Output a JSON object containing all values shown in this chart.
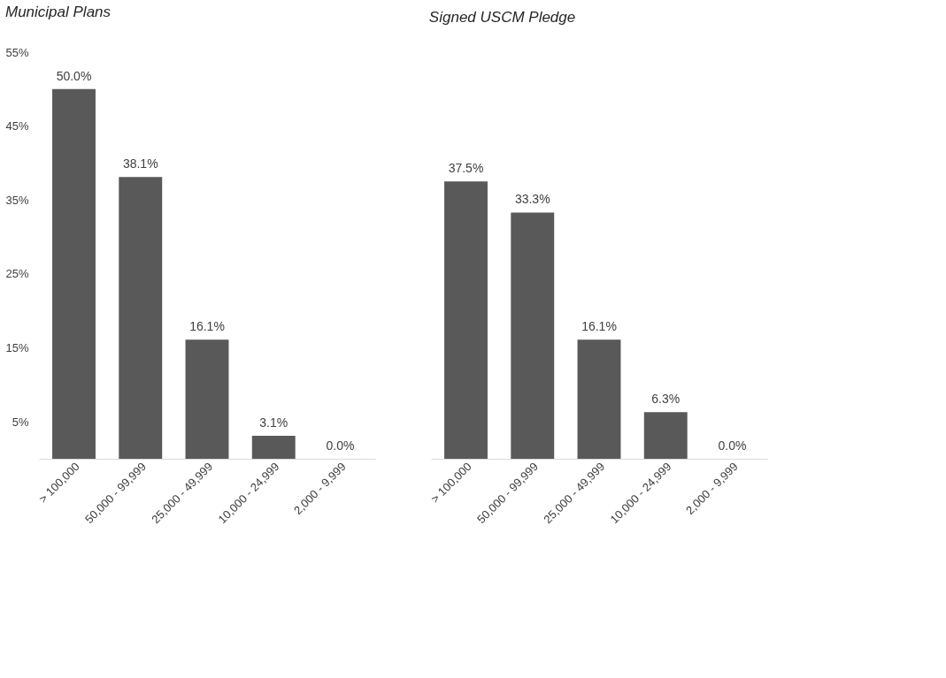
{
  "chart_data": [
    {
      "type": "bar",
      "title": "Municipal Plans",
      "categories": [
        "> 100,000",
        "50,000 - 99,999",
        "25,000 - 49,999",
        "10,000 - 24,999",
        "2,000 - 9,999"
      ],
      "series": [
        {
          "color": "#595959",
          "values": [
            50.0,
            38.1,
            16.1,
            3.1,
            0.0
          ],
          "value_labels": [
            "50.0%",
            "38.1%",
            "16.1%",
            "3.1%",
            "0.0%"
          ]
        }
      ],
      "ylim": [
        0,
        55
      ],
      "yticks": [
        {
          "value": 5,
          "label": "5%"
        },
        {
          "value": 15,
          "label": "15%"
        },
        {
          "value": 25,
          "label": "25%"
        },
        {
          "value": 35,
          "label": "35%"
        },
        {
          "value": 45,
          "label": "45%"
        },
        {
          "value": 55,
          "label": "55%"
        }
      ],
      "grid": false
    },
    {
      "type": "bar",
      "title": "Signed USCM Pledge",
      "categories": [
        "> 100,000",
        "50,000 - 99,999",
        "25,000 - 49,999",
        "10,000 - 24,999",
        "2,000 - 9,999"
      ],
      "series": [
        {
          "color": "#595959",
          "values": [
            37.5,
            33.3,
            16.1,
            6.3,
            0.0
          ],
          "value_labels": [
            "37.5%",
            "33.3%",
            "16.1%",
            "6.3%",
            "0.0%"
          ]
        }
      ],
      "ylim": [
        0,
        55
      ],
      "tick_labels": "x",
      "grid": false
    }
  ]
}
